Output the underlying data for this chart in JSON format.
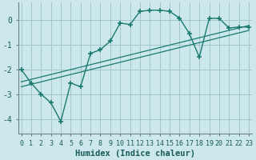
{
  "xlabel": "Humidex (Indice chaleur)",
  "background_color": "#cce8ec",
  "grid_color": "#a0c8cc",
  "line_color": "#1a7a6e",
  "x_ticks": [
    0,
    1,
    2,
    3,
    4,
    5,
    6,
    7,
    8,
    9,
    10,
    11,
    12,
    13,
    14,
    15,
    16,
    17,
    18,
    19,
    20,
    21,
    22,
    23
  ],
  "y_ticks": [
    -4,
    -3,
    -2,
    -1,
    0
  ],
  "ylim": [
    -4.6,
    0.7
  ],
  "xlim": [
    -0.3,
    23.3
  ],
  "main_curve_x": [
    0,
    1,
    2,
    3,
    4,
    5,
    6,
    7,
    8,
    9,
    10,
    11,
    12,
    13,
    14,
    15,
    16,
    17,
    18,
    19,
    20,
    21,
    22,
    23
  ],
  "main_curve_y": [
    -2.0,
    -2.55,
    -3.0,
    -3.35,
    -4.1,
    -2.55,
    -2.7,
    -1.35,
    -1.2,
    -0.85,
    -0.12,
    -0.18,
    0.35,
    0.4,
    0.4,
    0.35,
    0.08,
    -0.55,
    -1.5,
    0.07,
    0.07,
    -0.32,
    -0.28,
    -0.28
  ],
  "line1_x": [
    0,
    23
  ],
  "line1_y": [
    -2.5,
    -0.22
  ],
  "line2_x": [
    0,
    23
  ],
  "line2_y": [
    -2.7,
    -0.42
  ],
  "tick_fontsize": 6.0,
  "xlabel_fontsize": 7.5
}
